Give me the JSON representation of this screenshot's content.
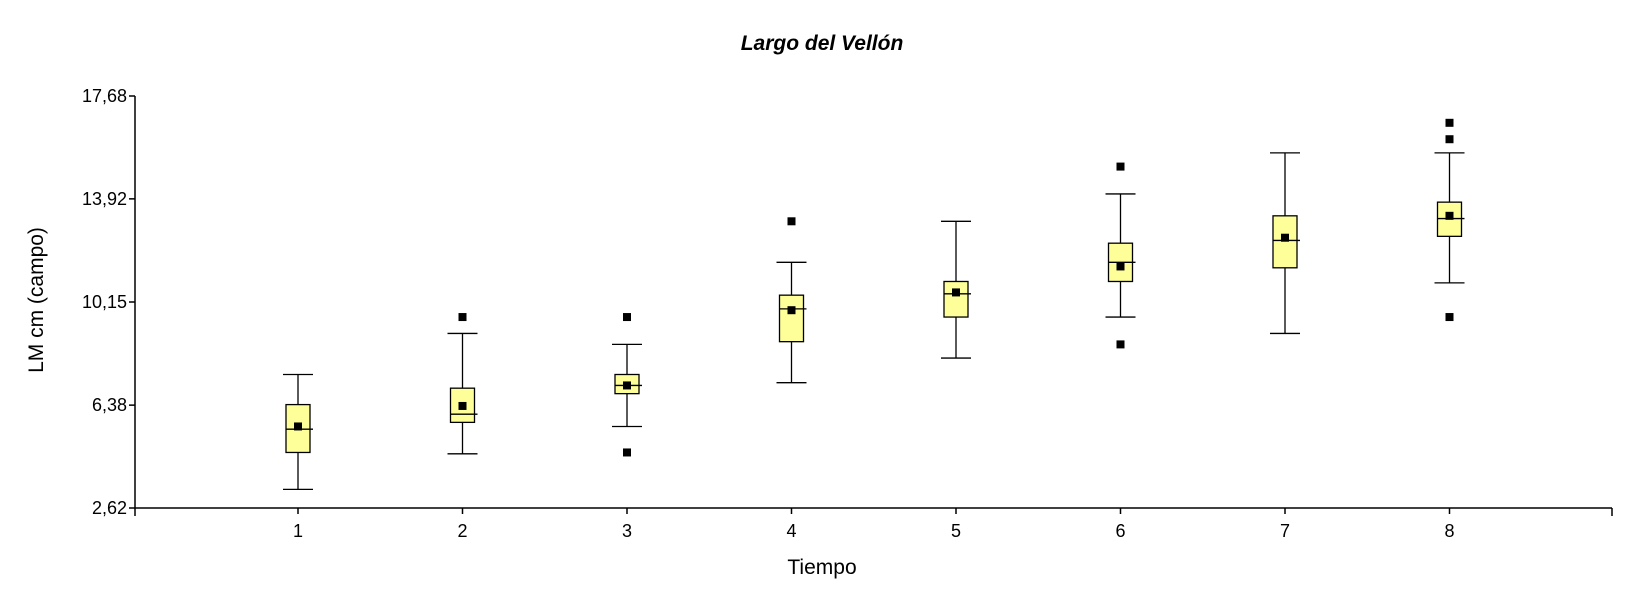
{
  "chart_data": {
    "type": "box",
    "title": "Largo del Vellón",
    "xlabel": "Tiempo",
    "ylabel": "LM cm (campo)",
    "ylim": [
      2.62,
      17.68
    ],
    "yticks": [
      "2,62",
      "6,38",
      "10,15",
      "13,92",
      "17,68"
    ],
    "ytick_values": [
      2.62,
      6.38,
      10.15,
      13.92,
      17.68
    ],
    "categories": [
      "1",
      "2",
      "3",
      "4",
      "5",
      "6",
      "7",
      "8"
    ],
    "grid": false,
    "legend": "none",
    "box_color": "#ffff99",
    "series": [
      {
        "category": "1",
        "whisker_low": 3.3,
        "q1": 4.65,
        "median": 5.5,
        "q3": 6.4,
        "whisker_high": 7.5,
        "mean": 5.6,
        "outliers": []
      },
      {
        "category": "2",
        "whisker_low": 4.6,
        "q1": 5.75,
        "median": 6.05,
        "q3": 7.0,
        "whisker_high": 9.0,
        "mean": 6.35,
        "outliers": [
          9.6
        ]
      },
      {
        "category": "3",
        "whisker_low": 5.6,
        "q1": 6.8,
        "median": 7.1,
        "q3": 7.5,
        "whisker_high": 8.6,
        "mean": 7.1,
        "outliers": [
          9.6,
          4.65
        ]
      },
      {
        "category": "4",
        "whisker_low": 7.2,
        "q1": 8.7,
        "median": 9.9,
        "q3": 10.4,
        "whisker_high": 11.6,
        "mean": 9.85,
        "outliers": [
          13.1
        ]
      },
      {
        "category": "5",
        "whisker_low": 8.1,
        "q1": 9.6,
        "median": 10.45,
        "q3": 10.9,
        "whisker_high": 13.1,
        "mean": 10.5,
        "outliers": []
      },
      {
        "category": "6",
        "whisker_low": 9.6,
        "q1": 10.9,
        "median": 11.6,
        "q3": 12.3,
        "whisker_high": 14.1,
        "mean": 11.45,
        "outliers": [
          15.1,
          8.6
        ]
      },
      {
        "category": "7",
        "whisker_low": 9.0,
        "q1": 11.4,
        "median": 12.4,
        "q3": 13.3,
        "whisker_high": 15.6,
        "mean": 12.5,
        "outliers": []
      },
      {
        "category": "8",
        "whisker_low": 10.85,
        "q1": 12.55,
        "median": 13.2,
        "q3": 13.8,
        "whisker_high": 15.6,
        "mean": 13.3,
        "outliers": [
          16.7,
          16.1,
          9.6
        ]
      }
    ]
  }
}
